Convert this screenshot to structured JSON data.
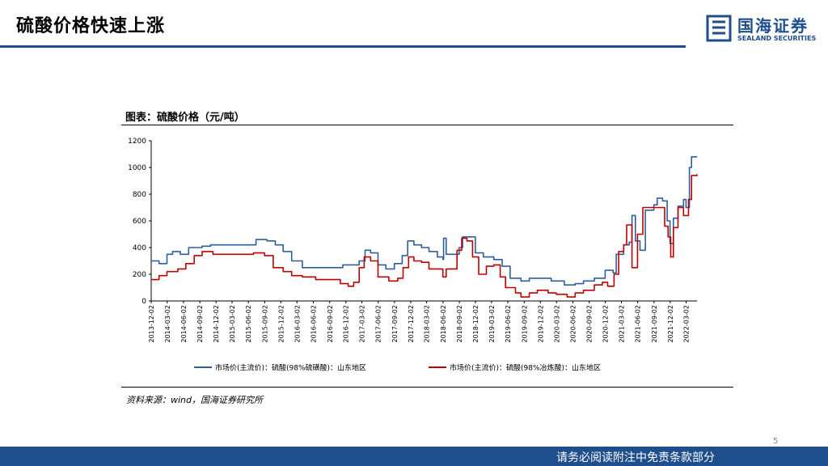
{
  "slide": {
    "title": "硫酸价格快速上涨",
    "page_number": "5",
    "footer": "请务必阅读附注中免责条款部分"
  },
  "logo": {
    "cn": "国海证券",
    "en": "SEALAND SECURITIES",
    "icon": "sealand-logo-icon"
  },
  "source": "资料来源：wind，国海证券研究所",
  "colors": {
    "accent": "#1f4e8c",
    "series1": "#2e5e9e",
    "series2": "#c00000"
  },
  "chart_data": {
    "type": "line",
    "title": "图表：硫酸价格（元/吨）",
    "xlabel": "",
    "ylabel": "",
    "ylim": [
      0,
      1200
    ],
    "yticks": [
      0,
      200,
      400,
      600,
      800,
      1000,
      1200
    ],
    "grid": false,
    "legend_position": "bottom",
    "x_start": "2013-12-02",
    "x_end": "2022-05-02",
    "xticks": [
      "2013-12-02",
      "2014-03-02",
      "2014-06-02",
      "2014-09-02",
      "2014-12-02",
      "2015-03-02",
      "2015-06-02",
      "2015-09-02",
      "2015-12-02",
      "2016-03-02",
      "2016-06-02",
      "2016-09-02",
      "2016-12-02",
      "2017-03-02",
      "2017-06-02",
      "2017-09-02",
      "2017-12-02",
      "2018-03-02",
      "2018-06-02",
      "2018-09-02",
      "2018-12-02",
      "2019-03-02",
      "2019-06-02",
      "2019-09-02",
      "2019-12-02",
      "2020-03-02",
      "2020-06-02",
      "2020-09-02",
      "2020-12-02",
      "2021-03-02",
      "2021-06-02",
      "2021-09-02",
      "2021-12-02",
      "2022-03-02"
    ],
    "series": [
      {
        "name": "市场价(主流价)：硫酸(98%硫磺酸)：山东地区",
        "color": "#2e5e9e",
        "points": [
          [
            "2013-12-02",
            300
          ],
          [
            "2014-01-15",
            280
          ],
          [
            "2014-03-01",
            350
          ],
          [
            "2014-04-01",
            370
          ],
          [
            "2014-05-15",
            350
          ],
          [
            "2014-07-01",
            400
          ],
          [
            "2014-09-15",
            410
          ],
          [
            "2014-11-01",
            420
          ],
          [
            "2015-01-15",
            420
          ],
          [
            "2015-03-15",
            420
          ],
          [
            "2015-06-01",
            420
          ],
          [
            "2015-07-15",
            460
          ],
          [
            "2015-09-15",
            450
          ],
          [
            "2015-11-01",
            420
          ],
          [
            "2015-12-15",
            370
          ],
          [
            "2016-02-01",
            300
          ],
          [
            "2016-04-01",
            250
          ],
          [
            "2016-06-01",
            250
          ],
          [
            "2016-09-01",
            250
          ],
          [
            "2016-11-15",
            270
          ],
          [
            "2017-01-15",
            270
          ],
          [
            "2017-02-15",
            300
          ],
          [
            "2017-03-20",
            380
          ],
          [
            "2017-04-20",
            360
          ],
          [
            "2017-06-01",
            270
          ],
          [
            "2017-07-15",
            240
          ],
          [
            "2017-09-01",
            280
          ],
          [
            "2017-10-15",
            340
          ],
          [
            "2017-11-15",
            450
          ],
          [
            "2017-12-20",
            420
          ],
          [
            "2018-02-01",
            400
          ],
          [
            "2018-03-15",
            370
          ],
          [
            "2018-05-01",
            330
          ],
          [
            "2018-06-02",
            310
          ],
          [
            "2018-06-05",
            470
          ],
          [
            "2018-06-20",
            350
          ],
          [
            "2018-08-01",
            350
          ],
          [
            "2018-09-01",
            400
          ],
          [
            "2018-09-20",
            480
          ],
          [
            "2018-11-01",
            480
          ],
          [
            "2018-12-01",
            360
          ],
          [
            "2019-01-15",
            330
          ],
          [
            "2019-03-15",
            310
          ],
          [
            "2019-05-01",
            260
          ],
          [
            "2019-06-15",
            170
          ],
          [
            "2019-08-15",
            150
          ],
          [
            "2019-10-01",
            170
          ],
          [
            "2019-12-01",
            170
          ],
          [
            "2020-02-01",
            150
          ],
          [
            "2020-04-15",
            120
          ],
          [
            "2020-06-15",
            130
          ],
          [
            "2020-08-01",
            150
          ],
          [
            "2020-10-01",
            170
          ],
          [
            "2020-12-01",
            230
          ],
          [
            "2021-01-15",
            210
          ],
          [
            "2021-02-01",
            350
          ],
          [
            "2021-03-15",
            420
          ],
          [
            "2021-04-15",
            440
          ],
          [
            "2021-05-01",
            640
          ],
          [
            "2021-05-20",
            450
          ],
          [
            "2021-06-15",
            380
          ],
          [
            "2021-07-15",
            680
          ],
          [
            "2021-09-01",
            720
          ],
          [
            "2021-09-20",
            770
          ],
          [
            "2021-10-20",
            750
          ],
          [
            "2021-11-15",
            600
          ],
          [
            "2021-12-01",
            430
          ],
          [
            "2021-12-20",
            620
          ],
          [
            "2022-01-15",
            710
          ],
          [
            "2022-02-15",
            760
          ],
          [
            "2022-03-01",
            700
          ],
          [
            "2022-03-20",
            1000
          ],
          [
            "2022-04-01",
            1080
          ],
          [
            "2022-05-02",
            1080
          ]
        ]
      },
      {
        "name": "市场价(主流价)：硫酸(98%冶炼酸)：山东地区",
        "color": "#c00000",
        "points": [
          [
            "2013-12-02",
            160
          ],
          [
            "2014-01-15",
            190
          ],
          [
            "2014-03-01",
            220
          ],
          [
            "2014-05-01",
            240
          ],
          [
            "2014-06-15",
            280
          ],
          [
            "2014-08-01",
            340
          ],
          [
            "2014-09-15",
            370
          ],
          [
            "2014-11-15",
            350
          ],
          [
            "2015-02-01",
            350
          ],
          [
            "2015-05-01",
            350
          ],
          [
            "2015-07-01",
            360
          ],
          [
            "2015-09-01",
            340
          ],
          [
            "2015-10-20",
            250
          ],
          [
            "2015-12-15",
            220
          ],
          [
            "2016-02-01",
            190
          ],
          [
            "2016-04-01",
            180
          ],
          [
            "2016-06-15",
            160
          ],
          [
            "2016-09-01",
            160
          ],
          [
            "2016-11-01",
            130
          ],
          [
            "2016-12-15",
            110
          ],
          [
            "2017-01-15",
            140
          ],
          [
            "2017-02-15",
            250
          ],
          [
            "2017-03-15",
            330
          ],
          [
            "2017-04-20",
            300
          ],
          [
            "2017-06-01",
            180
          ],
          [
            "2017-08-01",
            150
          ],
          [
            "2017-09-20",
            170
          ],
          [
            "2017-10-20",
            250
          ],
          [
            "2017-11-20",
            330
          ],
          [
            "2017-12-20",
            300
          ],
          [
            "2018-02-01",
            290
          ],
          [
            "2018-03-15",
            240
          ],
          [
            "2018-05-01",
            240
          ],
          [
            "2018-06-01",
            180
          ],
          [
            "2018-06-20",
            240
          ],
          [
            "2018-08-01",
            240
          ],
          [
            "2018-08-20",
            380
          ],
          [
            "2018-09-15",
            470
          ],
          [
            "2018-10-15",
            450
          ],
          [
            "2018-11-15",
            330
          ],
          [
            "2018-12-20",
            200
          ],
          [
            "2019-02-01",
            260
          ],
          [
            "2019-03-15",
            270
          ],
          [
            "2019-04-20",
            180
          ],
          [
            "2019-05-20",
            100
          ],
          [
            "2019-07-15",
            60
          ],
          [
            "2019-08-15",
            30
          ],
          [
            "2019-10-01",
            60
          ],
          [
            "2019-11-15",
            80
          ],
          [
            "2020-01-15",
            60
          ],
          [
            "2020-03-01",
            50
          ],
          [
            "2020-05-01",
            30
          ],
          [
            "2020-06-15",
            60
          ],
          [
            "2020-08-01",
            80
          ],
          [
            "2020-10-01",
            120
          ],
          [
            "2020-11-15",
            140
          ],
          [
            "2020-12-15",
            110
          ],
          [
            "2021-01-20",
            200
          ],
          [
            "2021-02-15",
            370
          ],
          [
            "2021-03-15",
            420
          ],
          [
            "2021-04-01",
            570
          ],
          [
            "2021-05-01",
            250
          ],
          [
            "2021-06-01",
            500
          ],
          [
            "2021-07-01",
            700
          ],
          [
            "2021-08-15",
            700
          ],
          [
            "2021-10-01",
            700
          ],
          [
            "2021-11-01",
            560
          ],
          [
            "2021-11-20",
            480
          ],
          [
            "2021-12-05",
            330
          ],
          [
            "2021-12-20",
            550
          ],
          [
            "2022-01-15",
            700
          ],
          [
            "2022-02-15",
            640
          ],
          [
            "2022-03-15",
            760
          ],
          [
            "2022-04-01",
            940
          ],
          [
            "2022-05-02",
            950
          ]
        ]
      }
    ]
  }
}
